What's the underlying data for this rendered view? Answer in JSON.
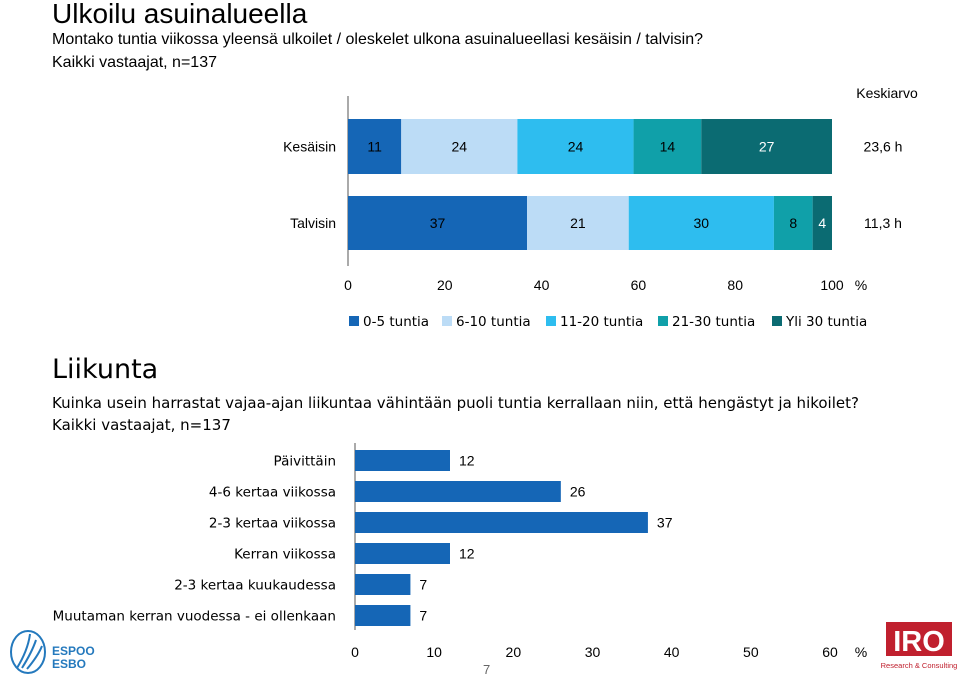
{
  "section1": {
    "title": "Ulkoilu asuinalueella",
    "question": "Montako tuntia viikossa yleensä ulkoilet / oleskelet ulkona asuinalueellasi kesäisin / talvisin?",
    "base": "Kaikki vastaajat, n=137"
  },
  "section2": {
    "title": "Liikunta",
    "question": "Kuinka usein harrastat vajaa-ajan liikuntaa vähintään puoli tuntia kerrallaan niin, että hengästyt ja hikoilet?",
    "base": "Kaikki vastaajat, n=137"
  },
  "page_number": "7",
  "logos": {
    "espoo_line1": "ESPOO",
    "espoo_line2": "ESBO",
    "iro_name": "IRO",
    "iro_sub": "Research & Consulting"
  },
  "colors": {
    "c1": "#1566b6",
    "c2": "#bcdcf6",
    "c3": "#2ebdef",
    "c4": "#10a0a9",
    "c5": "#0b6b72",
    "bar2": "#1566b6",
    "espoo": "#2479bd",
    "iro": "#c0202e"
  },
  "chart_data": [
    {
      "type": "bar",
      "orientation": "horizontal",
      "stacked": true,
      "categories": [
        "Kesäisin",
        "Talvisin"
      ],
      "series": [
        {
          "name": "0-5 tuntia",
          "values": [
            11,
            37
          ]
        },
        {
          "name": "6-10 tuntia",
          "values": [
            24,
            21
          ]
        },
        {
          "name": "11-20 tuntia",
          "values": [
            24,
            30
          ]
        },
        {
          "name": "21-30 tuntia",
          "values": [
            14,
            8
          ]
        },
        {
          "name": "Yli 30 tuntia",
          "values": [
            27,
            4
          ]
        }
      ],
      "extra_column_title": "Keskiarvo",
      "extra_column": [
        "23,6 h",
        "11,3 h"
      ],
      "xlim": [
        0,
        100
      ],
      "xticks": [
        "0",
        "20",
        "40",
        "60",
        "80",
        "100"
      ],
      "xunit": "%",
      "legend_position": "bottom"
    },
    {
      "type": "bar",
      "orientation": "horizontal",
      "categories": [
        "Päivittäin",
        "4-6 kertaa viikossa",
        "2-3 kertaa viikossa",
        "Kerran viikossa",
        "2-3 kertaa kuukaudessa",
        "Muutaman kerran vuodessa - ei ollenkaan"
      ],
      "values": [
        12,
        26,
        37,
        12,
        7,
        7
      ],
      "xlim": [
        0,
        60
      ],
      "xticks": [
        "0",
        "10",
        "20",
        "30",
        "40",
        "50",
        "60"
      ],
      "xunit": "%"
    }
  ]
}
